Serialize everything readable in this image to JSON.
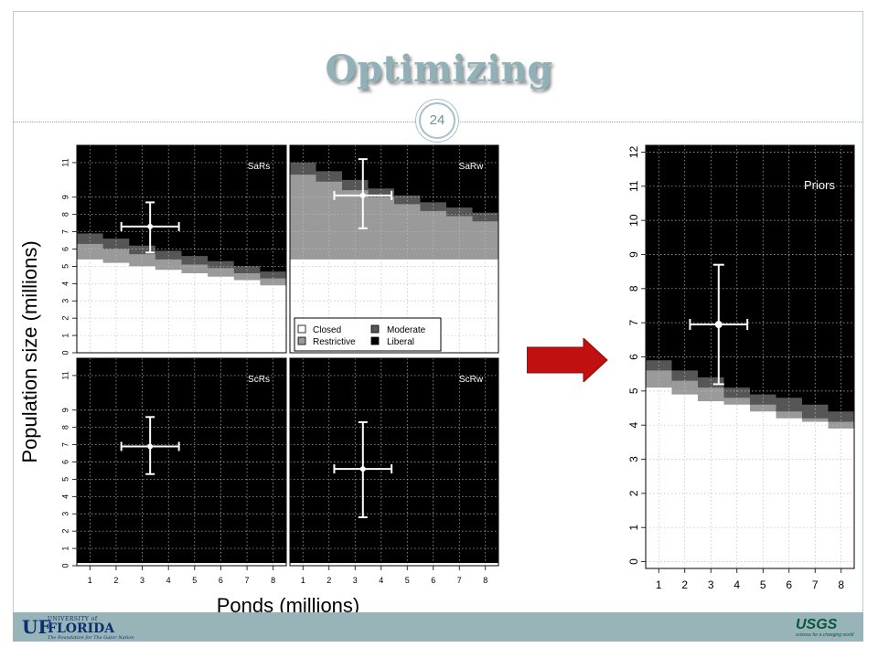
{
  "slide": {
    "title": "Optimizing",
    "page_number": "24",
    "ylabel": "Population size (millions)",
    "xlabel": "Ponds (millions)",
    "arrow_icon": "right-arrow-icon",
    "colors": {
      "Closed": "#ffffff",
      "Restrictive": "#9a9a9a",
      "Moderate": "#565656",
      "Liberal": "#000000",
      "arrow": "#c0100f",
      "footer": "#99b4b8",
      "title": "#8fb1b7"
    }
  },
  "footer": {
    "uf_mark": "UF",
    "uf_university": "UNIVERSITY of",
    "uf_florida": "FLORIDA",
    "uf_tagline": "The Foundation for The Gator Nation",
    "usgs_name": "USGS",
    "usgs_tagline": "science for a changing world"
  },
  "legend": {
    "entries": [
      {
        "label": "Closed",
        "color": "#ffffff"
      },
      {
        "label": "Moderate",
        "color": "#565656"
      },
      {
        "label": "Restrictive",
        "color": "#9a9a9a"
      },
      {
        "label": "Liberal",
        "color": "#000000"
      }
    ]
  },
  "chart_data": [
    {
      "type": "area",
      "title": "SaRs",
      "x_ticks": [
        "1",
        "2",
        "3",
        "4",
        "5",
        "6",
        "7",
        "8"
      ],
      "y_ticks": [
        "0",
        "1",
        "2",
        "3",
        "4",
        "5",
        "6",
        "7",
        "8",
        "9",
        "11"
      ],
      "xlim": [
        0.5,
        8.5
      ],
      "ylim": [
        0,
        12
      ],
      "grid": true,
      "steps_x": [
        0.5,
        1.5,
        2.5,
        3.5,
        4.5,
        5.5,
        6.5,
        7.5,
        8.5
      ],
      "closed_upper": [
        5.4,
        5.2,
        5.0,
        4.8,
        4.6,
        4.4,
        4.2,
        3.9
      ],
      "restrictive_upper": [
        6.3,
        6.0,
        5.7,
        5.4,
        5.1,
        4.9,
        4.6,
        4.3
      ],
      "moderate_upper": [
        6.9,
        6.6,
        6.2,
        5.9,
        5.6,
        5.3,
        5.0,
        4.7
      ],
      "point": {
        "x": 3.3,
        "y": 7.3,
        "x_err": [
          2.2,
          4.4
        ],
        "y_err": [
          5.8,
          8.7
        ]
      }
    },
    {
      "type": "area",
      "title": "SaRw",
      "x_ticks": [
        "1",
        "2",
        "3",
        "4",
        "5",
        "6",
        "7",
        "8"
      ],
      "y_ticks": [
        "0",
        "1",
        "2",
        "3",
        "4",
        "5",
        "6",
        "7",
        "8",
        "9",
        "11"
      ],
      "xlim": [
        0.5,
        8.5
      ],
      "ylim": [
        0,
        12
      ],
      "grid": true,
      "steps_x": [
        0.5,
        1.5,
        2.5,
        3.5,
        4.5,
        5.5,
        6.5,
        7.5,
        8.5
      ],
      "closed_upper": [
        5.4,
        5.4,
        5.4,
        5.4,
        5.4,
        5.4,
        5.4,
        5.4
      ],
      "restrictive_upper": [
        10.3,
        9.9,
        9.4,
        9.0,
        8.6,
        8.2,
        7.9,
        7.6
      ],
      "moderate_upper": [
        11.0,
        10.5,
        10.0,
        9.5,
        9.1,
        8.7,
        8.4,
        8.1
      ],
      "point": {
        "x": 3.3,
        "y": 9.1,
        "x_err": [
          2.2,
          4.4
        ],
        "y_err": [
          7.2,
          11.2
        ]
      }
    },
    {
      "type": "area",
      "title": "ScRs",
      "x_ticks": [
        "1",
        "2",
        "3",
        "4",
        "5",
        "6",
        "7",
        "8"
      ],
      "y_ticks": [
        "0",
        "1",
        "2",
        "3",
        "4",
        "5",
        "6",
        "7",
        "8",
        "9",
        "11"
      ],
      "xlim": [
        0.5,
        8.5
      ],
      "ylim": [
        0,
        12
      ],
      "grid": true,
      "steps_x": [
        0.5,
        1.5,
        2.5,
        3.5,
        4.5,
        5.5,
        6.5,
        7.5,
        8.5
      ],
      "closed_upper": [
        0.15,
        0.15,
        0.15,
        0.15,
        0.15,
        0.15,
        0.15,
        0.15
      ],
      "restrictive_upper": [
        0.15,
        0.15,
        0.15,
        0.15,
        0.15,
        0.15,
        0.15,
        0.15
      ],
      "moderate_upper": [
        0.15,
        0.15,
        0.15,
        0.15,
        0.15,
        0.15,
        0.15,
        0.15
      ],
      "point": {
        "x": 3.3,
        "y": 6.9,
        "x_err": [
          2.2,
          4.4
        ],
        "y_err": [
          5.3,
          8.6
        ]
      }
    },
    {
      "type": "area",
      "title": "ScRw",
      "x_ticks": [
        "1",
        "2",
        "3",
        "4",
        "5",
        "6",
        "7",
        "8"
      ],
      "y_ticks": [
        "0",
        "1",
        "2",
        "3",
        "4",
        "5",
        "6",
        "7",
        "8",
        "9",
        "11"
      ],
      "xlim": [
        0.5,
        8.5
      ],
      "ylim": [
        0,
        12
      ],
      "grid": true,
      "steps_x": [
        0.5,
        1.5,
        2.5,
        3.5,
        4.5,
        5.5,
        6.5,
        7.5,
        8.5
      ],
      "closed_upper": [
        0.15,
        0.15,
        0.15,
        0.15,
        0.15,
        0.15,
        0.15,
        0.15
      ],
      "restrictive_upper": [
        0.15,
        0.15,
        0.15,
        0.15,
        0.15,
        0.15,
        0.15,
        0.15
      ],
      "moderate_upper": [
        0.15,
        0.15,
        0.15,
        0.15,
        0.15,
        0.15,
        0.15,
        0.15
      ],
      "point": {
        "x": 3.3,
        "y": 5.6,
        "x_err": [
          2.2,
          4.4
        ],
        "y_err": [
          2.8,
          8.3
        ]
      }
    },
    {
      "type": "area",
      "title": "Priors",
      "x_ticks": [
        "1",
        "2",
        "3",
        "4",
        "5",
        "6",
        "7",
        "8"
      ],
      "y_ticks": [
        "0",
        "1",
        "2",
        "3",
        "4",
        "5",
        "6",
        "7",
        "8",
        "9",
        "10",
        "11",
        "12"
      ],
      "xlim": [
        0.5,
        8.5
      ],
      "ylim": [
        -0.2,
        12.2
      ],
      "grid": true,
      "steps_x": [
        0.5,
        1.5,
        2.5,
        3.5,
        4.5,
        5.5,
        6.5,
        7.5,
        8.5
      ],
      "closed_upper": [
        5.1,
        4.9,
        4.7,
        4.6,
        4.4,
        4.2,
        4.1,
        3.9
      ],
      "restrictive_upper": [
        5.6,
        5.3,
        5.1,
        4.8,
        4.6,
        4.4,
        4.2,
        4.1
      ],
      "moderate_upper": [
        5.9,
        5.6,
        5.4,
        5.1,
        4.9,
        4.8,
        4.6,
        4.4
      ],
      "point": {
        "x": 3.3,
        "y": 6.95,
        "x_err": [
          2.2,
          4.4
        ],
        "y_err": [
          5.2,
          8.7
        ]
      }
    }
  ]
}
